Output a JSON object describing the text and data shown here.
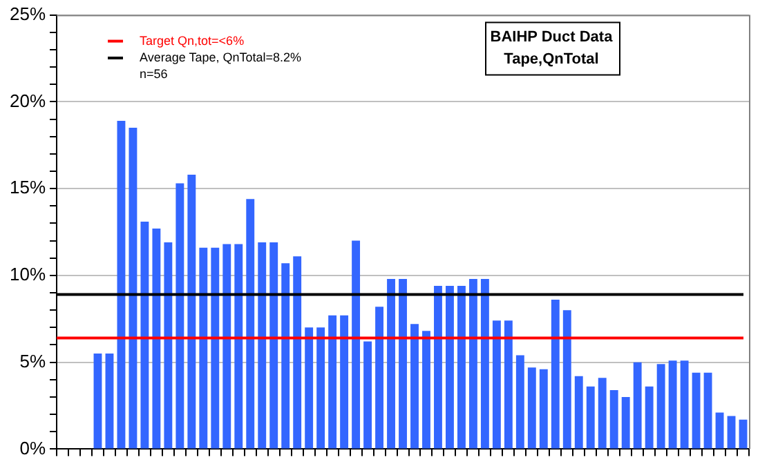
{
  "chart_data": {
    "type": "bar",
    "title": "BAIHP Duct Data",
    "subtitle": "Tape,QnTotal",
    "categories": [
      null,
      null,
      null,
      null,
      null,
      null,
      null,
      null,
      null,
      null,
      null,
      null,
      null,
      null,
      null,
      null,
      null,
      null,
      null,
      null,
      null,
      null,
      null,
      null,
      null,
      null,
      null,
      null,
      null,
      null,
      null,
      null,
      null,
      null,
      null,
      null,
      null,
      null,
      null,
      null,
      null,
      null,
      null,
      null,
      null,
      null,
      null,
      null,
      null,
      null,
      null,
      null,
      null,
      null,
      null,
      null,
      null,
      null,
      null
    ],
    "values": [
      null,
      null,
      null,
      5.5,
      5.5,
      18.9,
      18.5,
      13.1,
      12.7,
      11.9,
      15.3,
      15.8,
      11.6,
      11.6,
      11.8,
      11.8,
      14.4,
      11.9,
      11.9,
      10.7,
      11.1,
      7.0,
      7.0,
      7.7,
      7.7,
      12.0,
      6.2,
      8.2,
      9.8,
      9.8,
      7.2,
      6.8,
      9.4,
      9.4,
      9.4,
      9.8,
      9.8,
      7.4,
      7.4,
      5.4,
      4.7,
      4.6,
      8.6,
      8.0,
      4.2,
      3.6,
      4.1,
      3.4,
      3.0,
      5.0,
      3.6,
      4.9,
      5.1,
      5.1,
      4.4,
      4.4,
      2.1,
      1.9,
      1.7
    ],
    "color": "#3366ff",
    "ylim": [
      0,
      25
    ],
    "yticks": [
      {
        "value": 0,
        "label": "0%"
      },
      {
        "value": 1,
        "label": null
      },
      {
        "value": 2,
        "label": null
      },
      {
        "value": 3,
        "label": null
      },
      {
        "value": 4,
        "label": null
      },
      {
        "value": 5,
        "label": "5%"
      },
      {
        "value": 6,
        "label": null
      },
      {
        "value": 7,
        "label": null
      },
      {
        "value": 8,
        "label": null
      },
      {
        "value": 9,
        "label": null
      },
      {
        "value": 10,
        "label": "10%"
      },
      {
        "value": 11,
        "label": null
      },
      {
        "value": 12,
        "label": null
      },
      {
        "value": 13,
        "label": null
      },
      {
        "value": 14,
        "label": null
      },
      {
        "value": 15,
        "label": "15%"
      },
      {
        "value": 16,
        "label": null
      },
      {
        "value": 17,
        "label": null
      },
      {
        "value": 18,
        "label": null
      },
      {
        "value": 19,
        "label": null
      },
      {
        "value": 20,
        "label": "20%"
      },
      {
        "value": 21,
        "label": null
      },
      {
        "value": 22,
        "label": null
      },
      {
        "value": 23,
        "label": null
      },
      {
        "value": 24,
        "label": null
      },
      {
        "value": 25,
        "label": "25%"
      }
    ],
    "grid": "y",
    "legend": "top left",
    "ref_lines": [
      {
        "axis": "y",
        "value": 6.4,
        "label": "Target Qn,tot=<6%",
        "color": "#ff0000"
      },
      {
        "axis": "y",
        "value": 8.9,
        "color": "#000000"
      }
    ],
    "annotations": [
      "Average Tape, QnTotal=8.2%",
      "n=56"
    ]
  }
}
